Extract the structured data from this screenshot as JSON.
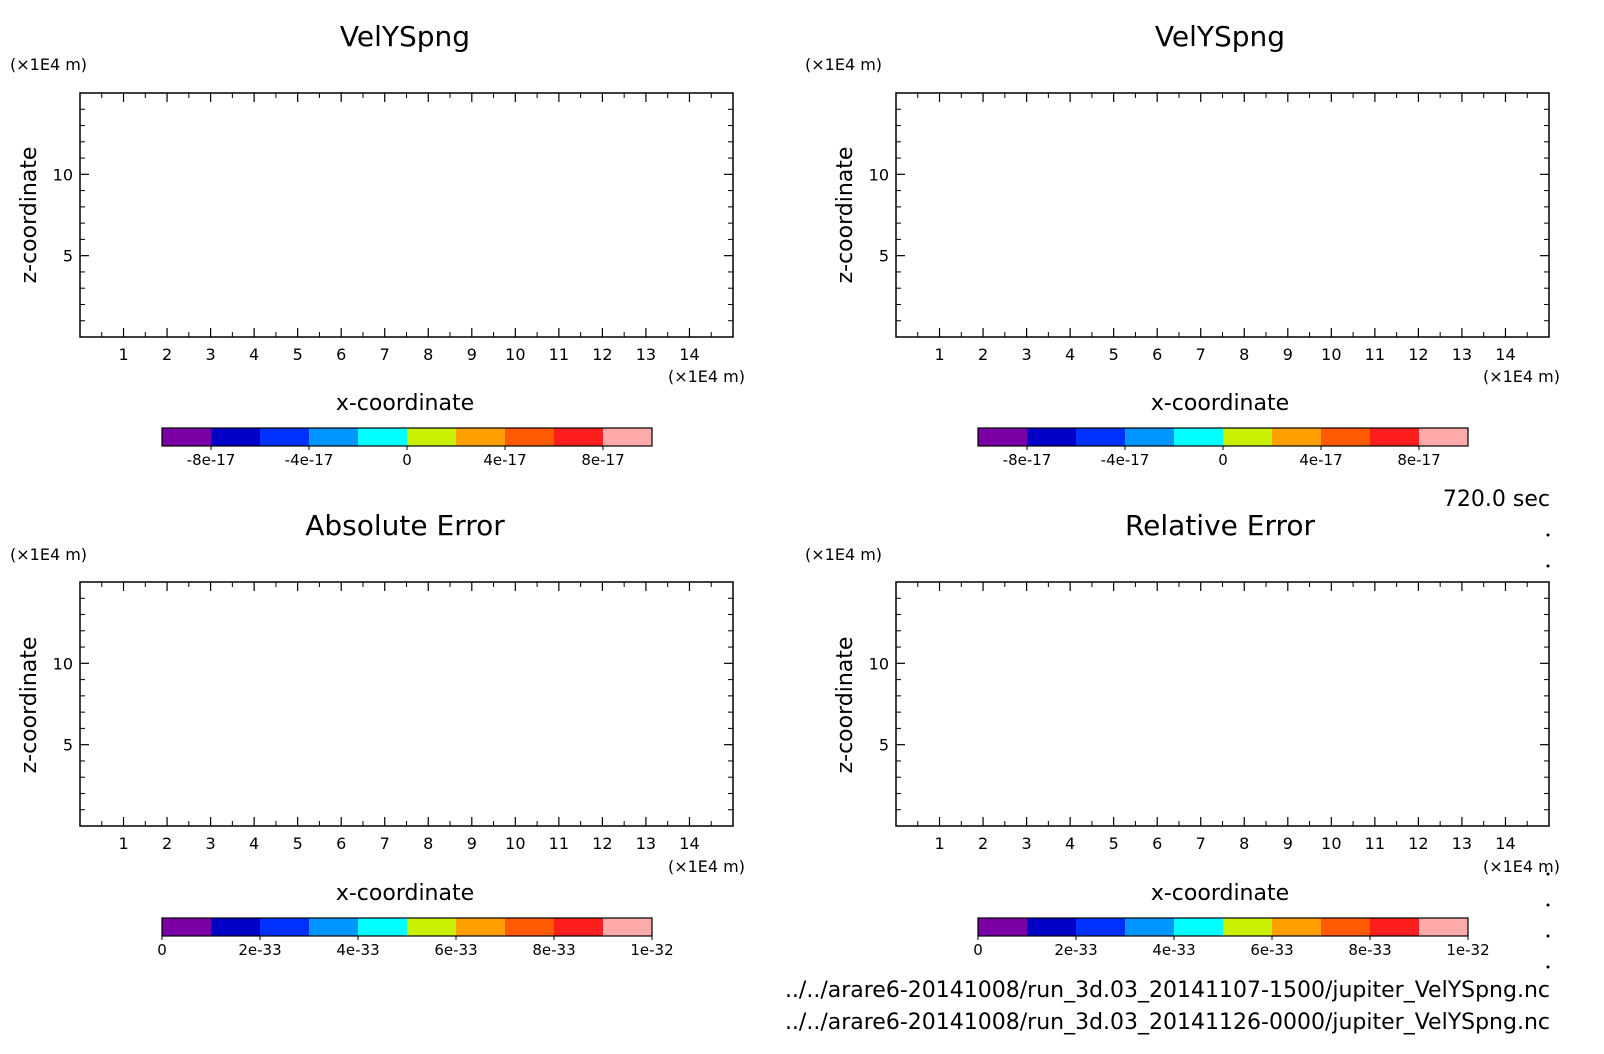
{
  "time_label": "720.0 sec",
  "files": [
    "../../arare6-20141008/run_3d.03_20141107-1500/jupiter_VelYSpng.nc",
    "../../arare6-20141008/run_3d.03_20141126-0000/jupiter_VelYSpng.nc"
  ],
  "colors": {
    "levels": [
      "#7a00a6",
      "#0000c8",
      "#0032ff",
      "#0096ff",
      "#00ffff",
      "#c8f000",
      "#ffa000",
      "#ff5a00",
      "#ff1e1e",
      "#ffaaaa"
    ]
  },
  "chart_data": [
    {
      "type": "heatmap",
      "title": "VelYSpng",
      "xlabel": "x-coordinate",
      "ylabel": "z-coordinate",
      "x_unit": "(×1E4 m)",
      "y_unit": "(×1E4 m)",
      "xlim": [
        0,
        15
      ],
      "ylim": [
        0,
        15
      ],
      "x_ticks": [
        1,
        2,
        3,
        4,
        5,
        6,
        7,
        8,
        9,
        10,
        11,
        12,
        13,
        14
      ],
      "y_ticks": [
        5,
        10
      ],
      "colorbar_ticks": [
        "-8e-17",
        "-4e-17",
        "0",
        "4e-17",
        "8e-17"
      ],
      "colorbar_tick_positions": [
        1,
        3,
        5,
        7,
        9
      ],
      "values": []
    },
    {
      "type": "heatmap",
      "title": "VelYSpng",
      "xlabel": "x-coordinate",
      "ylabel": "z-coordinate",
      "x_unit": "(×1E4 m)",
      "y_unit": "(×1E4 m)",
      "xlim": [
        0,
        15
      ],
      "ylim": [
        0,
        15
      ],
      "x_ticks": [
        1,
        2,
        3,
        4,
        5,
        6,
        7,
        8,
        9,
        10,
        11,
        12,
        13,
        14
      ],
      "y_ticks": [
        5,
        10
      ],
      "colorbar_ticks": [
        "-8e-17",
        "-4e-17",
        "0",
        "4e-17",
        "8e-17"
      ],
      "colorbar_tick_positions": [
        1,
        3,
        5,
        7,
        9
      ],
      "values": []
    },
    {
      "type": "heatmap",
      "title": "Absolute Error",
      "xlabel": "x-coordinate",
      "ylabel": "z-coordinate",
      "x_unit": "(×1E4 m)",
      "y_unit": "(×1E4 m)",
      "xlim": [
        0,
        15
      ],
      "ylim": [
        0,
        15
      ],
      "x_ticks": [
        1,
        2,
        3,
        4,
        5,
        6,
        7,
        8,
        9,
        10,
        11,
        12,
        13,
        14
      ],
      "y_ticks": [
        5,
        10
      ],
      "colorbar_ticks": [
        "0",
        "2e-33",
        "4e-33",
        "6e-33",
        "8e-33",
        "1e-32"
      ],
      "colorbar_tick_positions": [
        0,
        2,
        4,
        6,
        8,
        10
      ],
      "values": []
    },
    {
      "type": "heatmap",
      "title": "Relative Error",
      "xlabel": "x-coordinate",
      "ylabel": "z-coordinate",
      "x_unit": "(×1E4 m)",
      "y_unit": "(×1E4 m)",
      "xlim": [
        0,
        15
      ],
      "ylim": [
        0,
        15
      ],
      "x_ticks": [
        1,
        2,
        3,
        4,
        5,
        6,
        7,
        8,
        9,
        10,
        11,
        12,
        13,
        14
      ],
      "y_ticks": [
        5,
        10
      ],
      "colorbar_ticks": [
        "0",
        "2e-33",
        "4e-33",
        "6e-33",
        "8e-33",
        "1e-32"
      ],
      "colorbar_tick_positions": [
        0,
        2,
        4,
        6,
        8,
        10
      ],
      "values": []
    }
  ]
}
